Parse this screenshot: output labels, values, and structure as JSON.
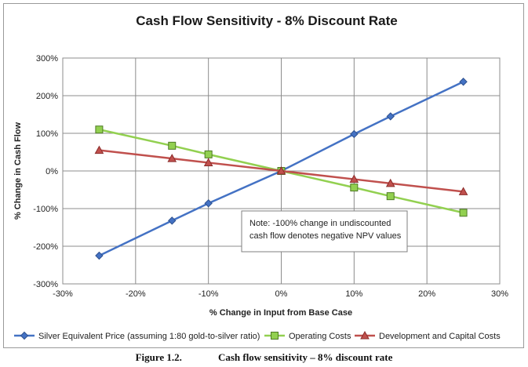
{
  "chart_data": {
    "type": "line",
    "title": "Cash Flow Sensitivity - 8% Discount Rate",
    "xlabel": "% Change in Input from Base Case",
    "ylabel": "% Change in Cash Flow",
    "xlim": [
      -30,
      30
    ],
    "ylim": [
      -300,
      300
    ],
    "x_ticks": [
      -30,
      -20,
      -10,
      0,
      10,
      20,
      30
    ],
    "x_tick_labels": [
      "-30%",
      "-20%",
      "-10%",
      "0%",
      "10%",
      "20%",
      "30%"
    ],
    "y_ticks": [
      -300,
      -200,
      -100,
      0,
      100,
      200,
      300
    ],
    "y_tick_labels": [
      "-300%",
      "-200%",
      "-100%",
      "0%",
      "100%",
      "200%",
      "300%"
    ],
    "grid": true,
    "legend_position": "bottom",
    "series": [
      {
        "name": "Silver Equivalent Price (assuming 1:80 gold-to-silver ratio)",
        "color": "#4472c4",
        "marker": "diamond",
        "x": [
          -25,
          -15,
          -10,
          0,
          10,
          15,
          25
        ],
        "values": [
          -225,
          -132,
          -86,
          0,
          98,
          145,
          237
        ]
      },
      {
        "name": "Operating Costs",
        "color": "#92d050",
        "marker": "square",
        "x": [
          -25,
          -15,
          -10,
          0,
          10,
          15,
          25
        ],
        "values": [
          110,
          67,
          44,
          0,
          -44,
          -67,
          -111
        ]
      },
      {
        "name": "Development and Capital Costs",
        "color": "#c0504d",
        "marker": "triangle",
        "x": [
          -25,
          -15,
          -10,
          0,
          10,
          15,
          25
        ],
        "values": [
          55,
          33,
          22,
          0,
          -22,
          -33,
          -55
        ]
      }
    ],
    "annotation": {
      "line1": "Note: -100% change in  undiscounted",
      "line2": "cash flow denotes negative NPV values"
    }
  },
  "caption": {
    "label": "Figure 1.2.",
    "text": "Cash flow sensitivity – 8% discount rate"
  }
}
